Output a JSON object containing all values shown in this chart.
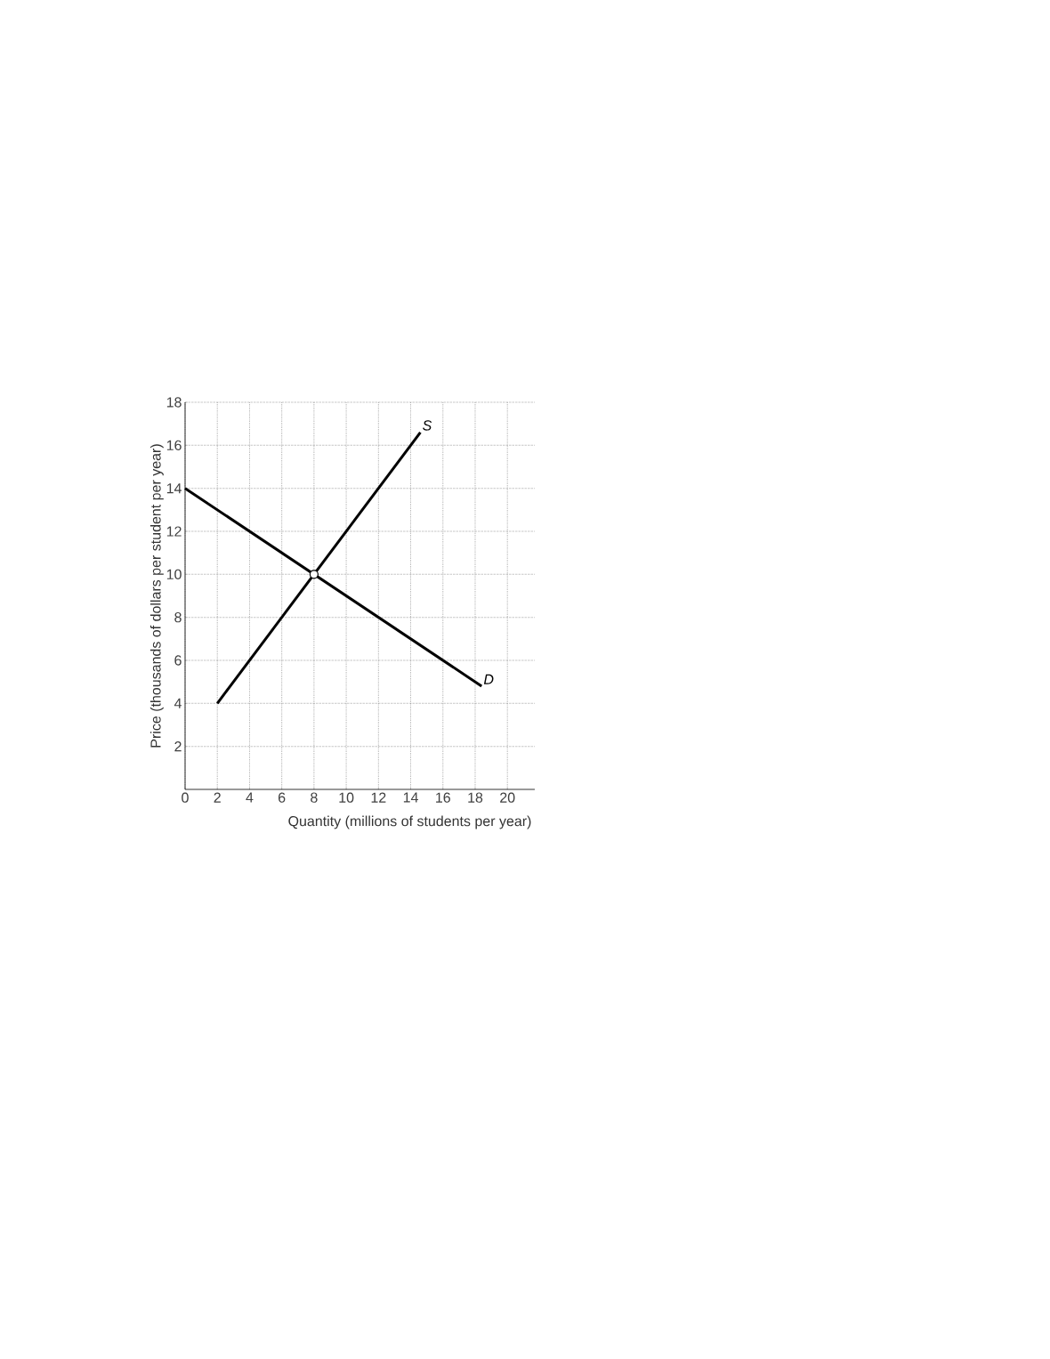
{
  "chart_data": {
    "type": "line",
    "xlabel": "Quantity (millions of students per year)",
    "ylabel": "Price (thousands of dollars per student per year)",
    "xlim": [
      0,
      21.7
    ],
    "ylim": [
      0,
      18
    ],
    "xticks": [
      0,
      2,
      4,
      6,
      8,
      10,
      12,
      14,
      16,
      18,
      20
    ],
    "yticks": [
      2,
      4,
      6,
      8,
      10,
      12,
      14,
      16,
      18
    ],
    "grid": true,
    "line_style": "solid",
    "series": [
      {
        "name": "S",
        "color": "#000000",
        "x": [
          2,
          14.6
        ],
        "values": [
          4,
          16.6
        ]
      },
      {
        "name": "D",
        "color": "#000000",
        "x": [
          0,
          18.4
        ],
        "values": [
          14,
          4.8
        ]
      },
      {
        "type": "scatter",
        "marker": "circle",
        "color": "#ffffff",
        "x": [
          8
        ],
        "values": [
          10
        ]
      }
    ]
  }
}
